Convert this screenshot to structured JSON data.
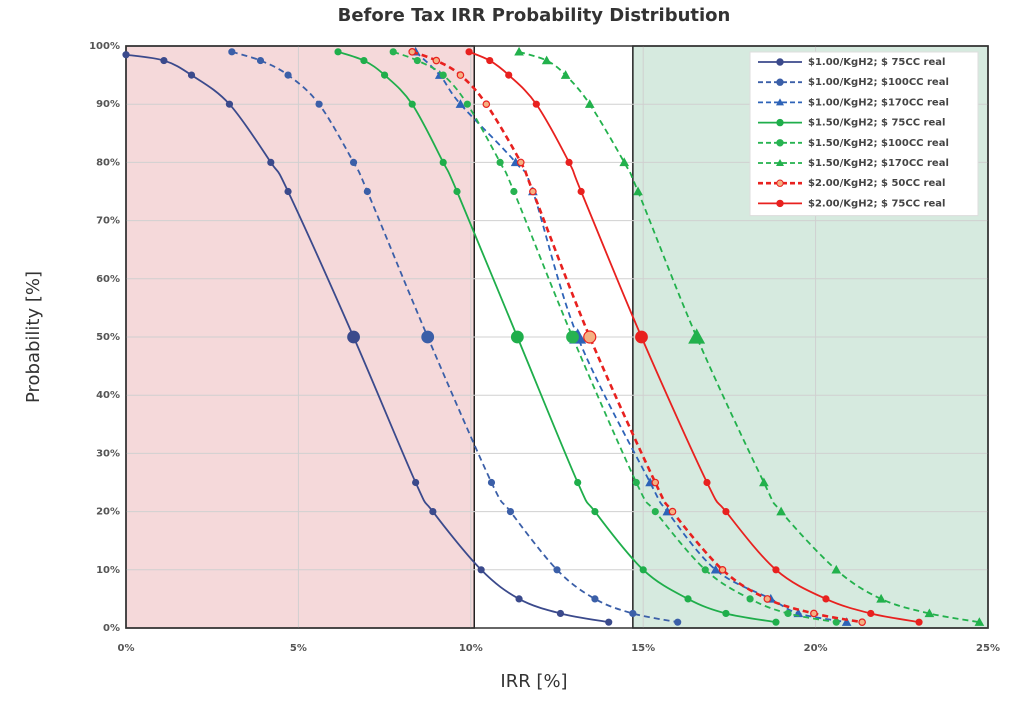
{
  "chart_data": {
    "type": "line",
    "title": "Before Tax IRR Probability Distribution",
    "xlabel": "IRR [%]",
    "ylabel": "Probability [%]",
    "xlim": [
      0,
      25
    ],
    "ylim": [
      0,
      100
    ],
    "xticks": [
      {
        "value": 0,
        "label": "0%"
      },
      {
        "value": 5,
        "label": "5%"
      },
      {
        "value": 10,
        "label": "10%"
      },
      {
        "value": 15,
        "label": "15%"
      },
      {
        "value": 20,
        "label": "20%"
      },
      {
        "value": 25,
        "label": "25%"
      }
    ],
    "yticks": [
      {
        "value": 0,
        "label": "0%"
      },
      {
        "value": 10,
        "label": "10%"
      },
      {
        "value": 20,
        "label": "20%"
      },
      {
        "value": 30,
        "label": "30%"
      },
      {
        "value": 40,
        "label": "40%"
      },
      {
        "value": 50,
        "label": "50%"
      },
      {
        "value": 60,
        "label": "60%"
      },
      {
        "value": 70,
        "label": "70%"
      },
      {
        "value": 80,
        "label": "80%"
      },
      {
        "value": 90,
        "label": "90%"
      },
      {
        "value": 100,
        "label": "100%"
      }
    ],
    "grid": true,
    "legend": "upper right",
    "regions": [
      {
        "x0": 0,
        "x1": 10.1,
        "color": "#f5d9da"
      },
      {
        "x0": 14.7,
        "x1": 25,
        "color": "#d6eadf"
      }
    ],
    "series": [
      {
        "name": "$1.00/KgH2; $ 75CC real",
        "color": "#3b4a8c",
        "linestyle": "solid",
        "marker": "circle",
        "x": [
          0,
          1.1,
          1.9,
          3.0,
          4.2,
          4.7,
          6.6,
          8.4,
          8.9,
          10.3,
          11.4,
          12.6,
          14.0
        ],
        "values": [
          98.5,
          97.5,
          95,
          90,
          80,
          75,
          50,
          25,
          20,
          10,
          5,
          2.5,
          1
        ]
      },
      {
        "name": "$1.00/KgH2; $100CC real",
        "color": "#3b5fa8",
        "linestyle": "dashed",
        "marker": "circle",
        "x": [
          3.07,
          3.9,
          4.7,
          5.6,
          6.6,
          7.0,
          8.75,
          10.6,
          11.15,
          12.5,
          13.6,
          14.7,
          16.0
        ],
        "values": [
          99,
          97.5,
          95,
          90,
          80,
          75,
          50,
          25,
          20,
          10,
          5,
          2.5,
          1
        ]
      },
      {
        "name": "$1.00/KgH2; $170CC real",
        "color": "#2e63b8",
        "linestyle": "dashed",
        "marker": "triangle",
        "x": [
          8.4,
          9.1,
          9.7,
          11.3,
          11.8,
          13.1,
          15.2,
          15.7,
          17.1,
          18.7,
          19.5,
          20.9
        ],
        "values": [
          99,
          95,
          90,
          80,
          75,
          50,
          25,
          20,
          10,
          5,
          2.5,
          1
        ]
      },
      {
        "name": "$1.50/KgH2; $ 75CC real",
        "color": "#1fae4b",
        "linestyle": "solid",
        "marker": "circle",
        "x": [
          6.15,
          6.9,
          7.5,
          8.3,
          9.2,
          9.6,
          11.35,
          13.1,
          13.6,
          15.0,
          16.3,
          17.4,
          18.85
        ],
        "values": [
          99,
          97.5,
          95,
          90,
          80,
          75,
          50,
          25,
          20,
          10,
          5,
          2.5,
          1
        ]
      },
      {
        "name": "$1.50/KgH2; $100CC real",
        "color": "#27b351",
        "linestyle": "dashed",
        "marker": "circle",
        "x": [
          7.75,
          8.45,
          9.2,
          9.9,
          10.85,
          11.25,
          12.95,
          14.8,
          15.35,
          16.8,
          18.1,
          19.2,
          20.6
        ],
        "values": [
          99,
          97.5,
          95,
          90,
          80,
          75,
          50,
          25,
          20,
          10,
          5,
          2.5,
          1
        ]
      },
      {
        "name": "$1.50/KgH2; $170CC real",
        "color": "#22b14c",
        "linestyle": "dashed",
        "marker": "triangle",
        "x": [
          11.4,
          12.2,
          12.75,
          13.45,
          14.45,
          14.85,
          16.55,
          18.5,
          19.0,
          20.6,
          21.9,
          23.3,
          24.75
        ],
        "values": [
          99,
          97.5,
          95,
          90,
          80,
          75,
          50,
          25,
          20,
          10,
          5,
          2.5,
          1
        ]
      },
      {
        "name": "$2.00/KgH2; $ 50CC real",
        "color": "#e8211f",
        "linestyle": "dashed",
        "marker": "circle",
        "marker_color": "#f4b183",
        "x": [
          8.3,
          9.0,
          9.7,
          10.45,
          11.45,
          11.8,
          13.45,
          15.35,
          15.85,
          17.3,
          18.6,
          19.95,
          21.35
        ],
        "values": [
          99,
          97.5,
          95,
          90,
          80,
          75,
          50,
          25,
          20,
          10,
          5,
          2.5,
          1
        ]
      },
      {
        "name": "$2.00/KgH2; $ 75CC real",
        "color": "#e8211f",
        "linestyle": "solid",
        "marker": "circle",
        "x": [
          9.95,
          10.55,
          11.1,
          11.9,
          12.85,
          13.2,
          14.95,
          16.85,
          17.4,
          18.85,
          20.3,
          21.6,
          23.0
        ],
        "values": [
          99,
          97.5,
          95,
          90,
          80,
          75,
          50,
          25,
          20,
          10,
          5,
          2.5,
          1
        ]
      }
    ]
  }
}
